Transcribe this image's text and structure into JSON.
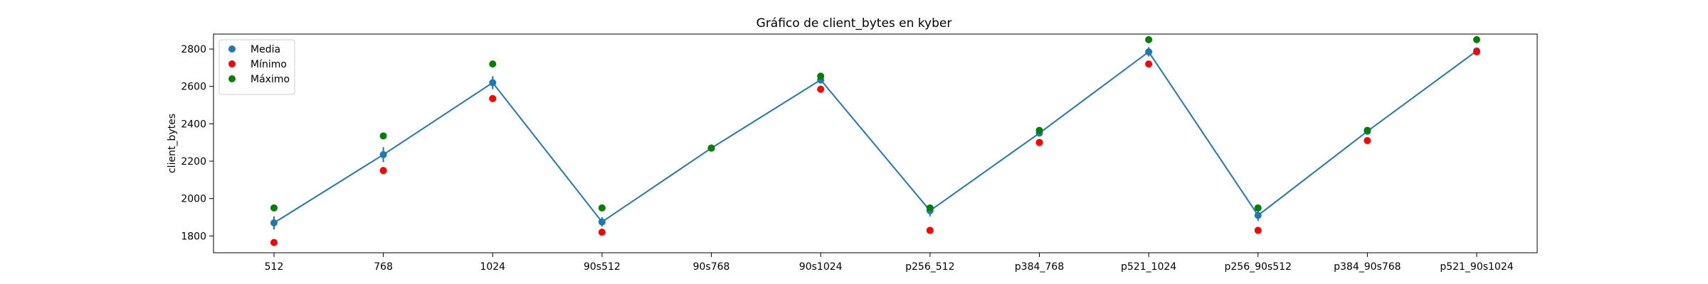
{
  "chart_data": {
    "type": "scatter",
    "title": "Gráfico de client_bytes en kyber",
    "xlabel": "",
    "ylabel": "client_bytes",
    "categories": [
      "512",
      "768",
      "1024",
      "90s512",
      "90s768",
      "90s1024",
      "p256_512",
      "p384_768",
      "p521_1024",
      "p256_90s512",
      "p384_90s768",
      "p521_90s1024"
    ],
    "ylim": [
      1710,
      2880
    ],
    "yticks": [
      1800,
      2000,
      2200,
      2400,
      2600,
      2800
    ],
    "grid": false,
    "legend_position": "top-left",
    "series": [
      {
        "name": "Media",
        "color": "#1f77b4",
        "style": "line-with-markers",
        "values": [
          1870,
          2235,
          2620,
          1875,
          2270,
          2635,
          1935,
          2350,
          2785,
          1910,
          2360,
          2790
        ],
        "error": [
          35,
          40,
          35,
          25,
          10,
          20,
          30,
          15,
          25,
          30,
          15,
          15
        ]
      },
      {
        "name": "Mínimo",
        "color": "#ff0000",
        "style": "markers",
        "values": [
          1765,
          2150,
          2535,
          1820,
          2270,
          2585,
          1830,
          2300,
          2720,
          1830,
          2310,
          2785
        ]
      },
      {
        "name": "Máximo",
        "color": "#008000",
        "style": "markers",
        "values": [
          1950,
          2335,
          2720,
          1950,
          2270,
          2655,
          1950,
          2365,
          2850,
          1950,
          2365,
          2850
        ]
      }
    ]
  }
}
